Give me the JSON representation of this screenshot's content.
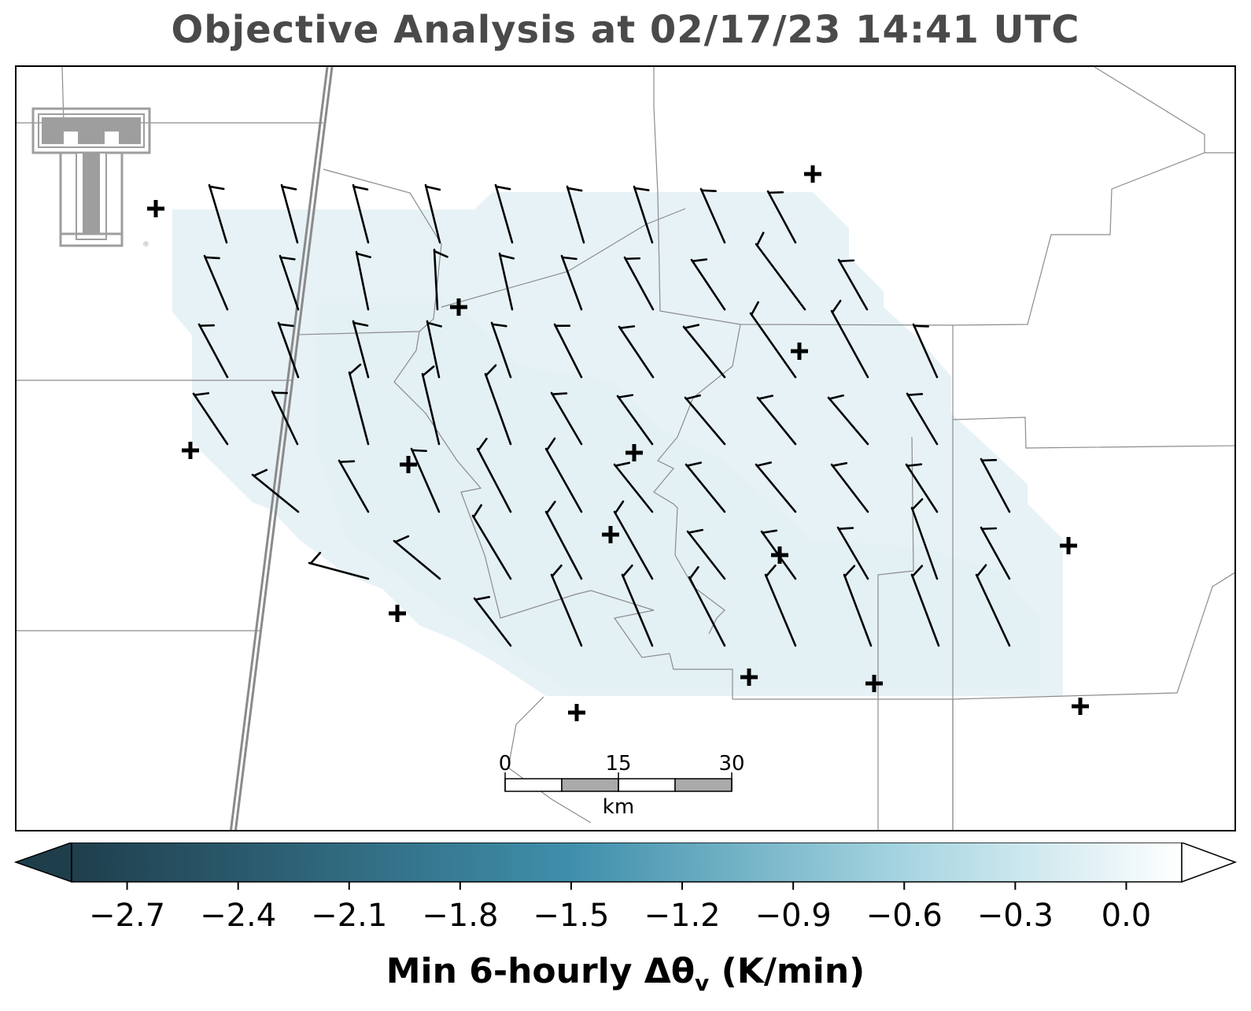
{
  "title": "Objective Analysis at 02/17/23 14:41 UTC",
  "logo": {
    "name": "texas-tech-double-t-logo",
    "mark": "®"
  },
  "map": {
    "basemap": "county-boundaries",
    "station_marker": "plus",
    "wind_symbol": "wind-barb",
    "shading_color": "#e6f1f5",
    "scale_bar": {
      "ticks": [
        "0",
        "15",
        "30"
      ],
      "unit": "km"
    }
  },
  "colorbar": {
    "label_main": "Min 6-hourly Δθ",
    "label_sub": "v",
    "label_units": " (K/min)",
    "ticks": [
      "−2.7",
      "−2.4",
      "−2.1",
      "−1.8",
      "−1.5",
      "−1.2",
      "−0.9",
      "−0.6",
      "−0.3",
      "0.0"
    ],
    "tick_values": [
      -2.7,
      -2.4,
      -2.1,
      -1.8,
      -1.5,
      -1.2,
      -0.9,
      -0.6,
      -0.3,
      0.0
    ],
    "range": [
      -2.85,
      0.15
    ],
    "extend": "both",
    "colors": [
      "#1f3e4c",
      "#3d8ea9",
      "#8cc6d6",
      "#ffffff"
    ]
  }
}
